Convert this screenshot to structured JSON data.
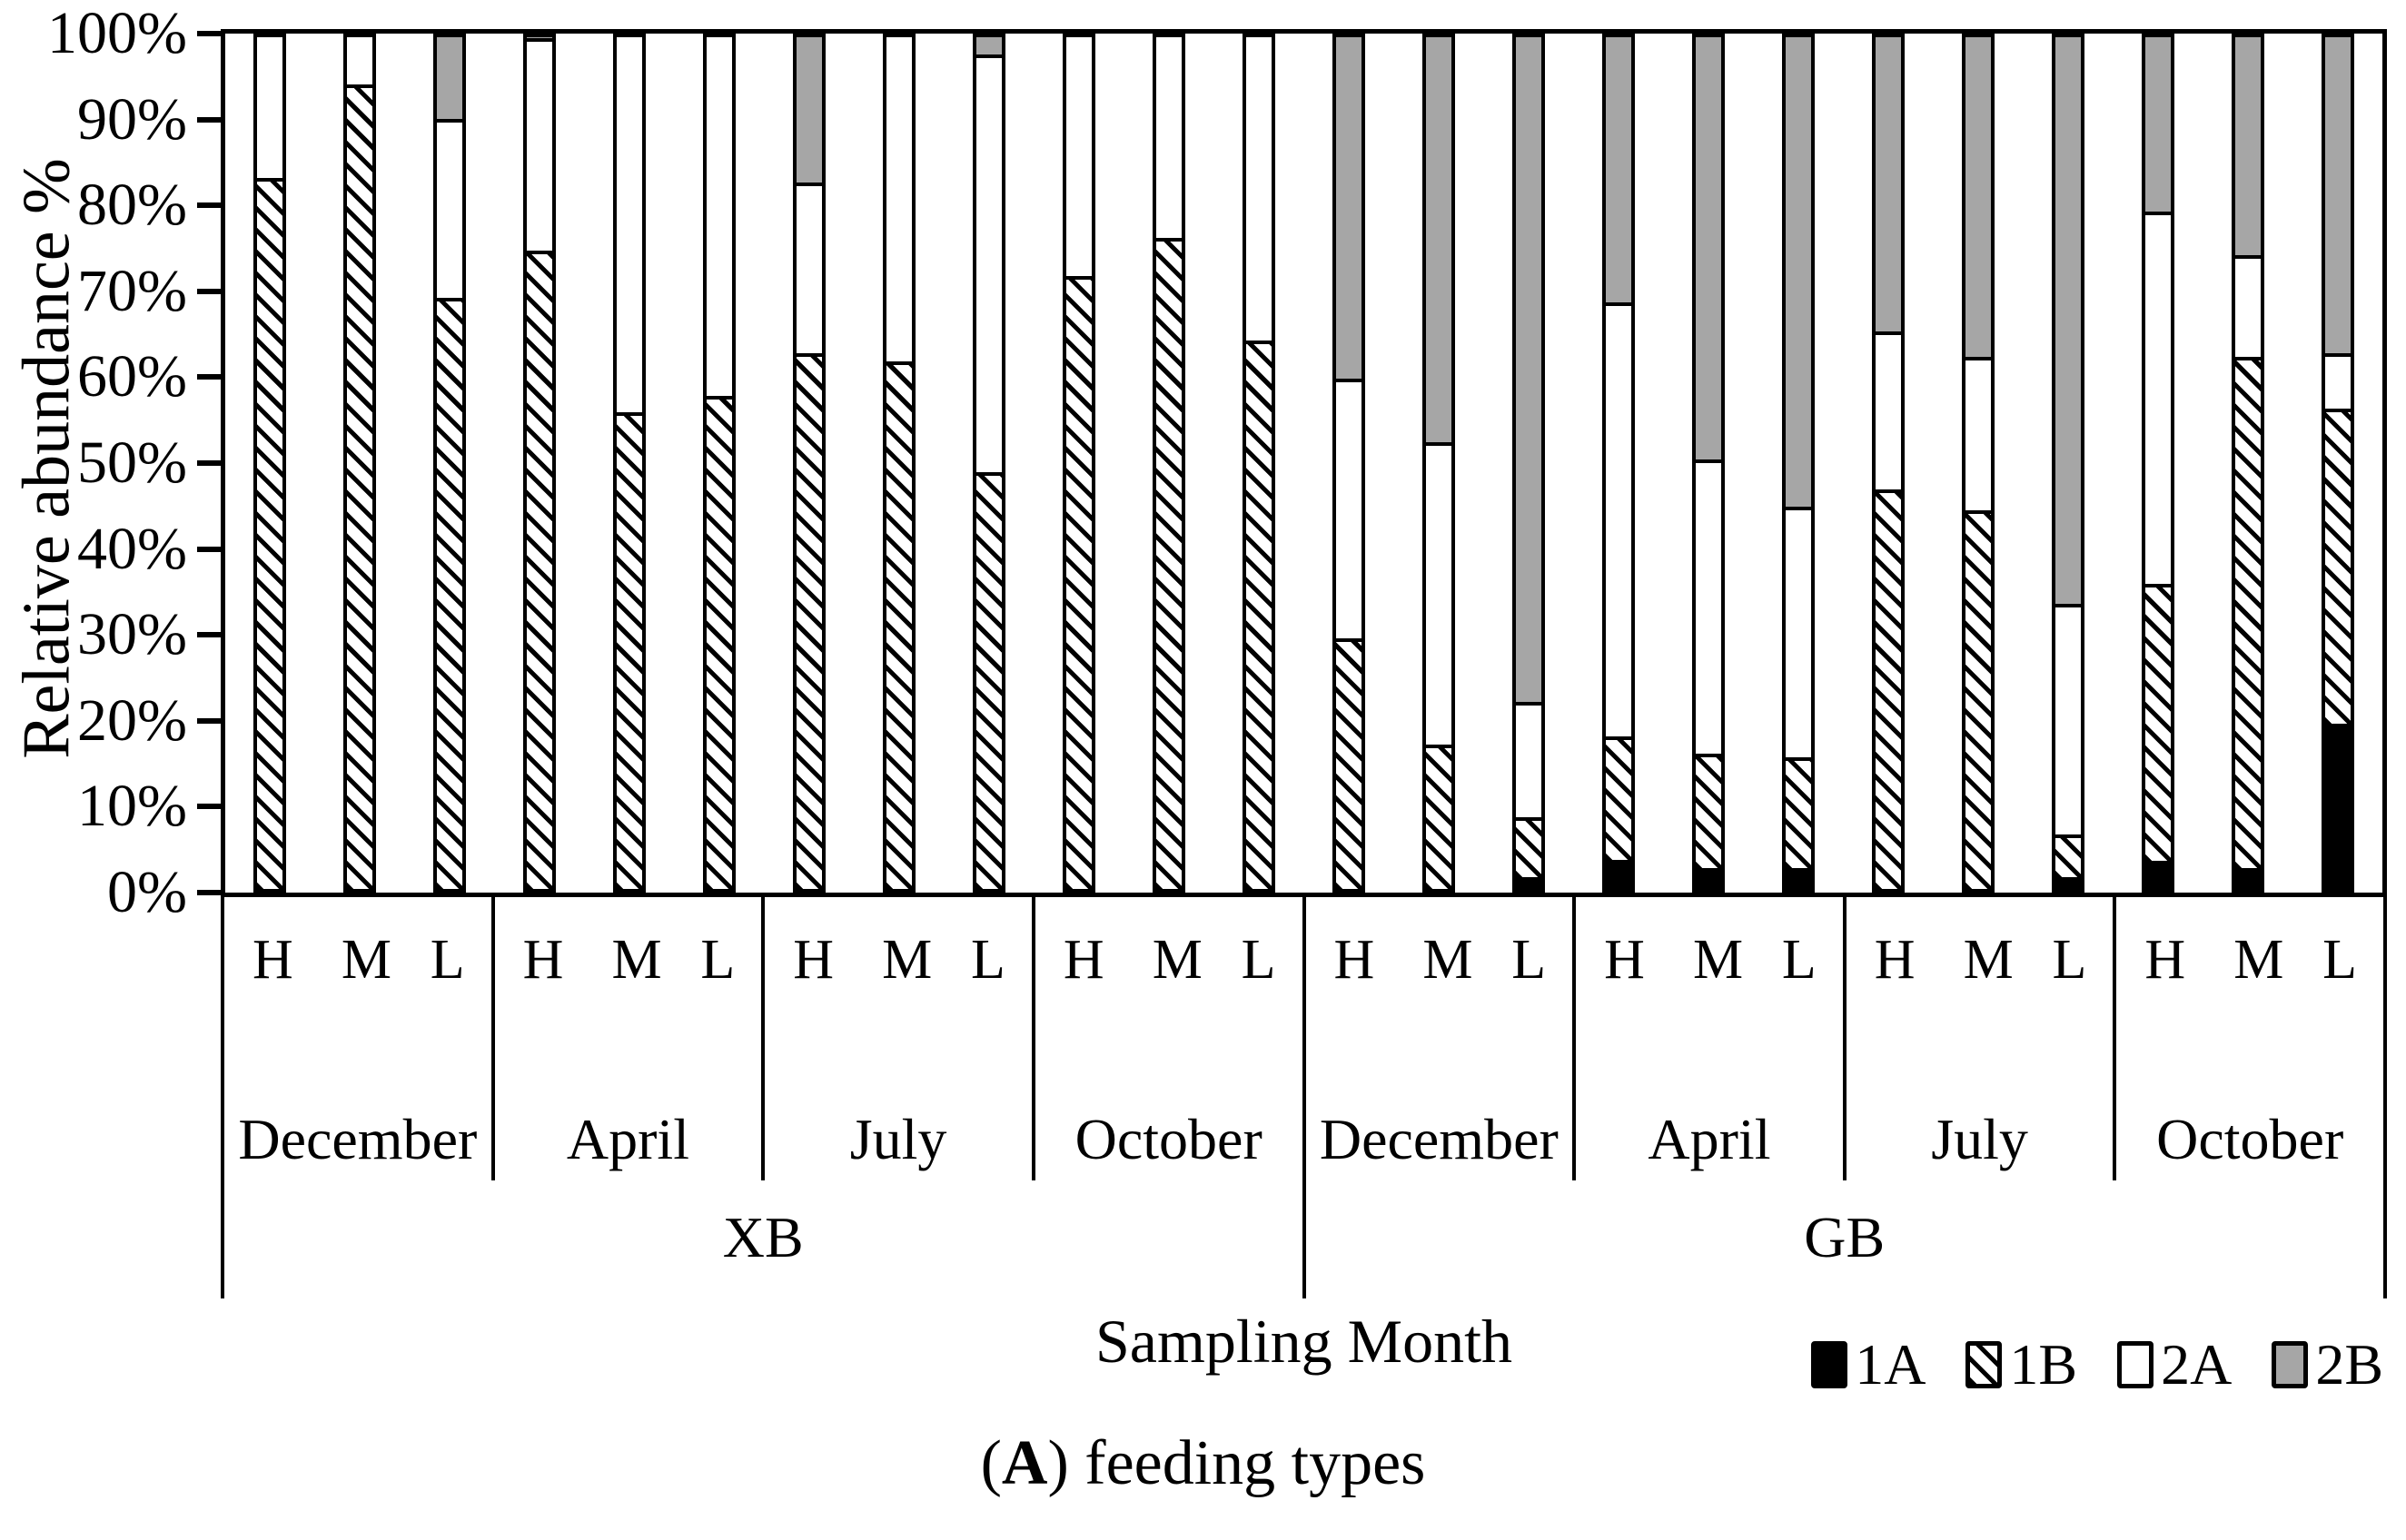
{
  "figure": {
    "caption": {
      "prefix": "(",
      "bold": "A",
      "suffix": ") feeding types"
    }
  },
  "chart_data": {
    "type": "bar",
    "stacked": true,
    "title": "",
    "ylabel": "Relative abundance %",
    "xlabel": "Sampling Month",
    "ylim": [
      0,
      100
    ],
    "grid": false,
    "legend_position": "bottom-right",
    "yticks": [
      "0%",
      "10%",
      "20%",
      "30%",
      "40%",
      "50%",
      "60%",
      "70%",
      "80%",
      "90%",
      "100%"
    ],
    "series_order": [
      "1A",
      "1B",
      "2A",
      "2B"
    ],
    "legend": [
      {
        "label": "1A",
        "fill": "black"
      },
      {
        "label": "1B",
        "fill": "hatch"
      },
      {
        "label": "2A",
        "fill": "white"
      },
      {
        "label": "2B",
        "fill": "gray"
      }
    ],
    "colors": {
      "black": "#000000",
      "white": "#ffffff",
      "gray": "#a6a6a6"
    },
    "level_labels": [
      "H",
      "M",
      "L"
    ],
    "sites": [
      {
        "name": "XB",
        "months": [
          {
            "name": "December",
            "values": {
              "H": [
                0,
                83,
                17,
                0
              ],
              "M": [
                0,
                94,
                6,
                0
              ],
              "L": [
                0,
                69,
                21,
                10
              ]
            }
          },
          {
            "name": "April",
            "values": {
              "H": [
                0,
                74.5,
                25,
                0.5
              ],
              "M": [
                0,
                55.5,
                44.5,
                0
              ],
              "L": [
                0,
                57.5,
                42.5,
                0
              ]
            }
          },
          {
            "name": "July",
            "values": {
              "H": [
                0,
                62.5,
                20,
                17.5
              ],
              "M": [
                0,
                61.5,
                38.5,
                0
              ],
              "L": [
                0,
                48.5,
                49,
                2.5
              ]
            }
          },
          {
            "name": "October",
            "values": {
              "H": [
                0,
                71.5,
                28.5,
                0
              ],
              "M": [
                0,
                76,
                24,
                0
              ],
              "L": [
                0,
                64,
                36,
                0
              ]
            }
          }
        ]
      },
      {
        "name": "GB",
        "months": [
          {
            "name": "December",
            "values": {
              "H": [
                0,
                29,
                30.5,
                40.5
              ],
              "M": [
                0,
                16.5,
                35.5,
                48
              ],
              "L": [
                1,
                7,
                13.5,
                78.5
              ]
            }
          },
          {
            "name": "April",
            "values": {
              "H": [
                3,
                14.5,
                51,
                31.5
              ],
              "M": [
                2,
                13.5,
                34.5,
                50
              ],
              "L": [
                2,
                13,
                29.5,
                55.5
              ]
            }
          },
          {
            "name": "July",
            "values": {
              "H": [
                0,
                46.5,
                18.5,
                35
              ],
              "M": [
                0,
                44,
                18,
                38
              ],
              "L": [
                1,
                5,
                27,
                67
              ]
            }
          },
          {
            "name": "October",
            "values": {
              "H": [
                3,
                33.5,
                45,
                21.5
              ],
              "M": [
                2,
                60,
                12,
                26
              ],
              "L": [
                19,
                37,
                6.5,
                37.5
              ]
            }
          }
        ]
      }
    ]
  }
}
